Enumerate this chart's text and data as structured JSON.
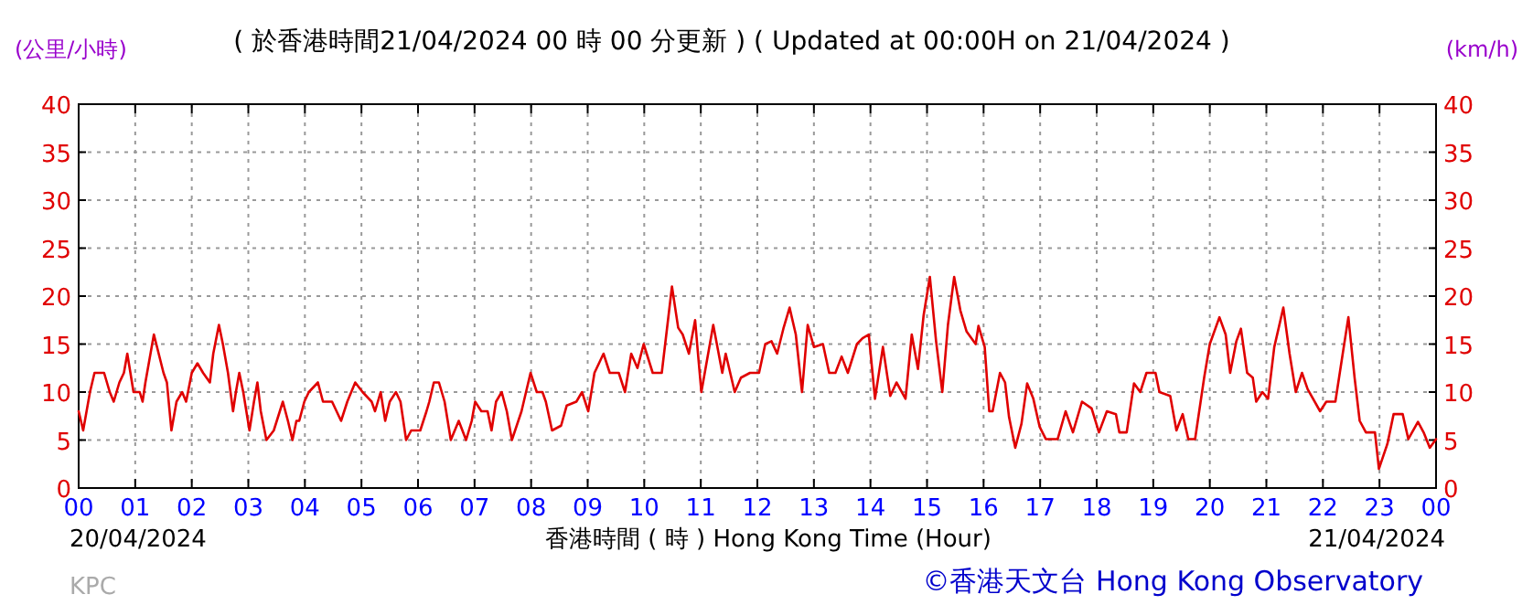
{
  "chart_data": {
    "type": "line",
    "title": "( 於香港時間21/04/2024 00 時 00 分更新 ) ( Updated at 00:00H on 21/04/2024 )",
    "ylabel": "(公里/小時)",
    "y2label": "(km/h)",
    "xlabel": "香港時間 ( 時 )  Hong Kong Time (Hour)",
    "annotations": [
      "20/04/2024",
      "21/04/2024",
      "KPC",
      "©香港天文台 Hong Kong Observatory"
    ],
    "xlim": [
      0,
      24
    ],
    "xticks": [
      {
        "value": 0,
        "label": "00"
      },
      {
        "value": 1,
        "label": "01"
      },
      {
        "value": 2,
        "label": "02"
      },
      {
        "value": 3,
        "label": "03"
      },
      {
        "value": 4,
        "label": "04"
      },
      {
        "value": 5,
        "label": "05"
      },
      {
        "value": 6,
        "label": "06"
      },
      {
        "value": 7,
        "label": "07"
      },
      {
        "value": 8,
        "label": "08"
      },
      {
        "value": 9,
        "label": "09"
      },
      {
        "value": 10,
        "label": "10"
      },
      {
        "value": 11,
        "label": "11"
      },
      {
        "value": 12,
        "label": "12"
      },
      {
        "value": 13,
        "label": "13"
      },
      {
        "value": 14,
        "label": "14"
      },
      {
        "value": 15,
        "label": "15"
      },
      {
        "value": 16,
        "label": "16"
      },
      {
        "value": 17,
        "label": "17"
      },
      {
        "value": 18,
        "label": "18"
      },
      {
        "value": 19,
        "label": "19"
      },
      {
        "value": 20,
        "label": "20"
      },
      {
        "value": 21,
        "label": "21"
      },
      {
        "value": 22,
        "label": "22"
      },
      {
        "value": 23,
        "label": "23"
      },
      {
        "value": 24,
        "label": "00"
      }
    ],
    "ylim": [
      0,
      40
    ],
    "yticks": [
      0,
      5,
      10,
      15,
      20,
      25,
      30,
      35,
      40
    ],
    "y2lim": [
      0,
      40
    ],
    "y2ticks": [
      0,
      5,
      10,
      15,
      20,
      25,
      30,
      35,
      40
    ],
    "grid": true,
    "series": [
      {
        "color": "#e00000",
        "x": [
          0,
          0.08,
          0.2,
          0.28,
          0.45,
          0.55,
          0.62,
          0.72,
          0.8,
          0.86,
          0.97,
          1.08,
          1.13,
          1.18,
          1.33,
          1.5,
          1.56,
          1.64,
          1.73,
          1.83,
          1.9,
          2.0,
          2.1,
          2.2,
          2.32,
          2.38,
          2.48,
          2.55,
          2.64,
          2.73,
          2.78,
          2.84,
          2.91,
          3.02,
          3.1,
          3.16,
          3.22,
          3.32,
          3.45,
          3.61,
          3.7,
          3.78,
          3.85,
          3.9,
          3.99,
          4.07,
          4.23,
          4.32,
          4.48,
          4.64,
          4.75,
          4.89,
          5.02,
          5.18,
          5.24,
          5.34,
          5.42,
          5.5,
          5.61,
          5.69,
          5.79,
          5.88,
          6.04,
          6.15,
          6.2,
          6.28,
          6.37,
          6.47,
          6.58,
          6.72,
          6.85,
          6.95,
          7.01,
          7.12,
          7.23,
          7.3,
          7.38,
          7.48,
          7.57,
          7.66,
          7.83,
          7.99,
          8.1,
          8.2,
          8.26,
          8.37,
          8.53,
          8.63,
          8.8,
          8.9,
          9.01,
          9.12,
          9.28,
          9.39,
          9.55,
          9.66,
          9.77,
          9.88,
          9.99,
          10.15,
          10.31,
          10.49,
          10.6,
          10.68,
          10.79,
          10.9,
          10.95,
          11.01,
          11.22,
          11.38,
          11.44,
          11.6,
          11.71,
          11.87,
          12.03,
          12.14,
          12.25,
          12.35,
          12.46,
          12.57,
          12.68,
          12.79,
          12.89,
          13.0,
          13.16,
          13.27,
          13.38,
          13.49,
          13.6,
          13.76,
          13.86,
          13.97,
          14.08,
          14.22,
          14.35,
          14.46,
          14.62,
          14.73,
          14.84,
          14.94,
          15.05,
          15.16,
          15.27,
          15.37,
          15.48,
          15.59,
          15.7,
          15.86,
          15.91,
          16.02,
          16.1,
          16.16,
          16.29,
          16.38,
          16.45,
          16.56,
          16.67,
          16.77,
          16.88,
          16.99,
          17.1,
          17.31,
          17.45,
          17.58,
          17.74,
          17.91,
          18.04,
          18.18,
          18.34,
          18.4,
          18.53,
          18.66,
          18.77,
          18.88,
          19.04,
          19.11,
          19.3,
          19.41,
          19.52,
          19.62,
          19.74,
          19.9,
          20.0,
          20.17,
          20.28,
          20.36,
          20.47,
          20.55,
          20.66,
          20.76,
          20.82,
          20.93,
          21.03,
          21.14,
          21.3,
          21.41,
          21.52,
          21.63,
          21.73,
          21.95,
          22.06,
          22.22,
          22.35,
          22.45,
          22.56,
          22.65,
          22.76,
          22.92,
          22.99,
          23.14,
          23.25,
          23.41,
          23.51,
          23.68,
          23.78,
          23.89,
          24.0
        ],
        "values": [
          8,
          6,
          10,
          12,
          12,
          10,
          9,
          11,
          12,
          14,
          10,
          10,
          9,
          11,
          16,
          12,
          11,
          6,
          9,
          10,
          9,
          12,
          13,
          12,
          11,
          14,
          17,
          15,
          12,
          8,
          10,
          12,
          10,
          6,
          9,
          11,
          8,
          5,
          6,
          9,
          7,
          5,
          7,
          7,
          9,
          10,
          11,
          9,
          9,
          7,
          9,
          11,
          10,
          9,
          8,
          10,
          7,
          9,
          10,
          9,
          5,
          6,
          6,
          8,
          9,
          11,
          11,
          9,
          5,
          7,
          5,
          7,
          9,
          8,
          8,
          6,
          9,
          10,
          8,
          5,
          8,
          12,
          10,
          10,
          9,
          6,
          6.5,
          8.6,
          9,
          10,
          8,
          12,
          14,
          12,
          12,
          10,
          14,
          12.5,
          15,
          12,
          12,
          21,
          16.7,
          16,
          14,
          17.5,
          14,
          10,
          17,
          12,
          14,
          10,
          11.5,
          12,
          12,
          15,
          15.3,
          14,
          16.6,
          18.8,
          16,
          10,
          17,
          14.7,
          15,
          12,
          12,
          13.7,
          12,
          15,
          15.6,
          16,
          9.3,
          14.7,
          9.6,
          11,
          9.3,
          16,
          12.4,
          18,
          22,
          15.3,
          10,
          17,
          22,
          18.5,
          16.3,
          15,
          16.9,
          14.7,
          8,
          8,
          12,
          11,
          7.4,
          4.2,
          6.7,
          10.9,
          9.3,
          6.4,
          5.1,
          5.1,
          8,
          5.8,
          9,
          8.3,
          5.8,
          8,
          7.7,
          5.8,
          5.8,
          10.9,
          10,
          12,
          12,
          10,
          9.6,
          6,
          7.7,
          5.1,
          5.1,
          11.5,
          15,
          17.8,
          16,
          12,
          15.3,
          16.6,
          12,
          11.5,
          9,
          10,
          9.3,
          14.7,
          18.8,
          14,
          10,
          12,
          10.3,
          8,
          9,
          9,
          14,
          17.8,
          11.5,
          7,
          5.8,
          5.8,
          2,
          4.6,
          7.7,
          7.7,
          5.1,
          6.9,
          5.8,
          4.2,
          5.1
        ]
      }
    ]
  }
}
